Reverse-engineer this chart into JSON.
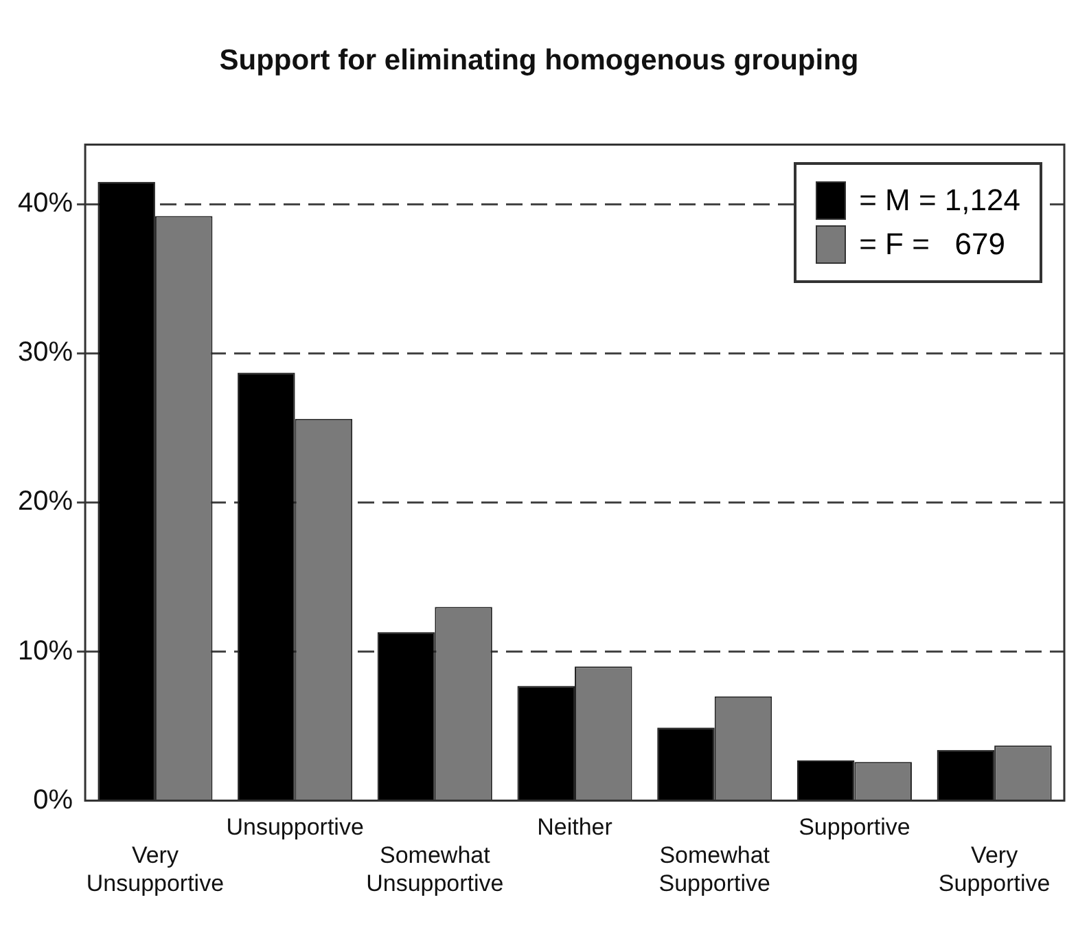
{
  "chart_data": {
    "type": "bar",
    "title": "Support for eliminating homogenous grouping",
    "categories": [
      "Very\nUnsupportive",
      "Unsupportive",
      "Somewhat\nUnsupportive",
      "Neither",
      "Somewhat\nSupportive",
      "Supportive",
      "Very\nSupportive"
    ],
    "series": [
      {
        "name": "= M = 1,124",
        "color": "#000000",
        "values": [
          41.5,
          28.7,
          11.3,
          7.7,
          4.9,
          2.7,
          3.4
        ]
      },
      {
        "name": "= F =   679",
        "color": "#7a7a7a",
        "values": [
          39.2,
          25.6,
          13.0,
          9.0,
          7.0,
          2.6,
          3.7
        ]
      }
    ],
    "ylim": [
      0,
      44
    ],
    "yticks": [
      {
        "value": 0,
        "label": "0%"
      },
      {
        "value": 10,
        "label": "10%"
      },
      {
        "value": 20,
        "label": "20%"
      },
      {
        "value": 30,
        "label": "30%"
      },
      {
        "value": 40,
        "label": "40%"
      }
    ],
    "grid": "y",
    "legend": "top right"
  }
}
